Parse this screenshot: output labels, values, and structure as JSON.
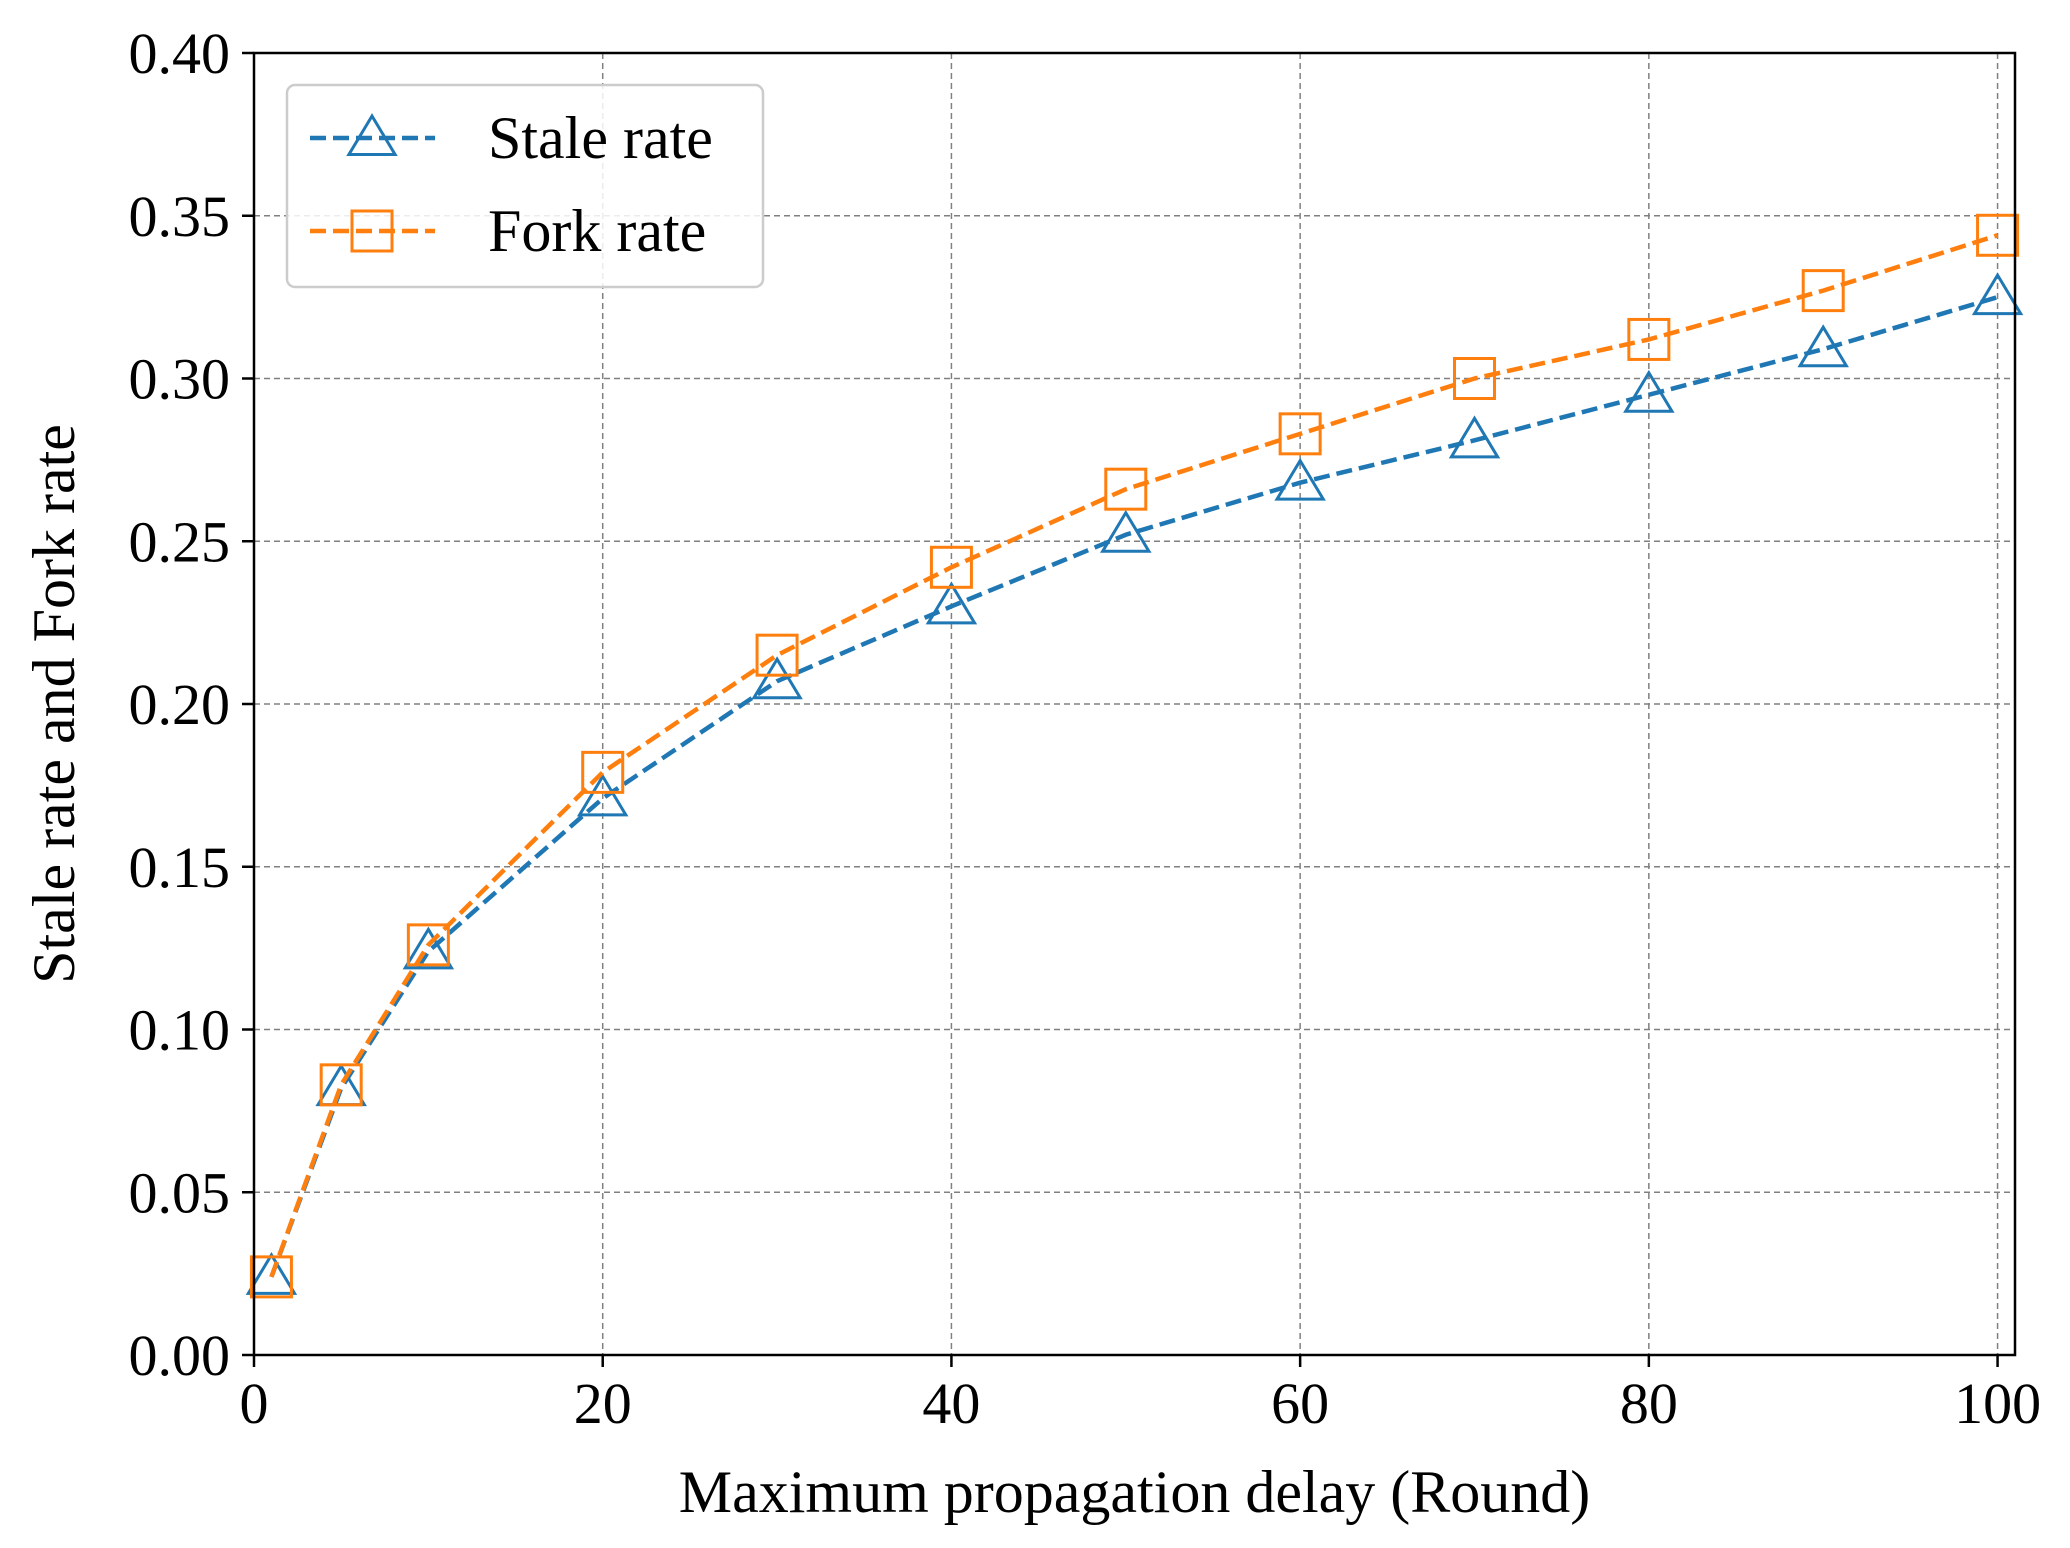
{
  "chart_data": {
    "type": "line",
    "title": "",
    "xlabel": "Maximum propagation delay (Round)",
    "ylabel": "Stale rate and Fork rate",
    "xlim": [
      0,
      101
    ],
    "ylim": [
      0.0,
      0.4
    ],
    "x_ticks": [
      0,
      20,
      40,
      60,
      80,
      100
    ],
    "y_ticks": [
      0.0,
      0.05,
      0.1,
      0.15,
      0.2,
      0.25,
      0.3,
      0.35,
      0.4
    ],
    "x_tick_labels": [
      "0",
      "20",
      "40",
      "60",
      "80",
      "100"
    ],
    "y_tick_labels": [
      "0.00",
      "0.05",
      "0.10",
      "0.15",
      "0.20",
      "0.25",
      "0.30",
      "0.35",
      "0.40"
    ],
    "grid": true,
    "legend_position": "top-left",
    "x": [
      1,
      5,
      10,
      20,
      30,
      40,
      50,
      60,
      70,
      80,
      90,
      100
    ],
    "series": [
      {
        "name": "Stale rate",
        "color": "#1f77b4",
        "marker": "triangle",
        "values": [
          0.024,
          0.082,
          0.124,
          0.171,
          0.207,
          0.23,
          0.252,
          0.268,
          0.281,
          0.295,
          0.309,
          0.325
        ]
      },
      {
        "name": "Fork rate",
        "color": "#ff7f0e",
        "marker": "square",
        "values": [
          0.024,
          0.083,
          0.126,
          0.179,
          0.215,
          0.242,
          0.266,
          0.283,
          0.3,
          0.312,
          0.327,
          0.344
        ]
      }
    ]
  }
}
